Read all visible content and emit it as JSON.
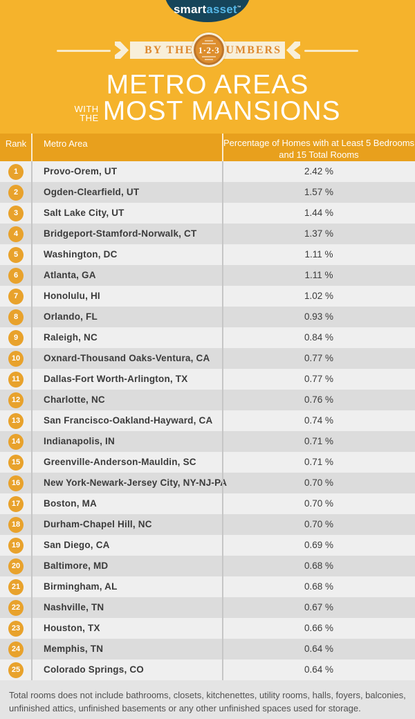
{
  "colors": {
    "background": "#F5B32C",
    "header_orange": "#E8A01D",
    "badge_orange": "#E8A22C",
    "ribbon_cream": "#F8EFD9",
    "ribbon_text_orange": "#DE8A31",
    "badge_circle_fill": "#DD8E2E",
    "badge_circle_ring": "#BD752B",
    "logo_navy": "#16455A",
    "logo_blue": "#56B7E6",
    "row_light": "#EFEFEF",
    "row_dark": "#DCDCDC",
    "footer_bg": "#E4E4E4",
    "text_dark": "#3B3B3B"
  },
  "logo": {
    "smart": "smart",
    "asset": "asset",
    "tm": "™"
  },
  "banner": {
    "left_label": "BY THE",
    "badge_label": "1·2·3",
    "right_label": "NUMBERS"
  },
  "title": {
    "line1": "METRO AREAS",
    "prefix_top": "WITH",
    "prefix_bottom": "THE",
    "line2": "MOST MANSIONS"
  },
  "table": {
    "header": {
      "rank": "Rank",
      "metro": "Metro Area",
      "value_line1": "Percentage of Homes with at Least",
      "value_line2": "5 Bedrooms and 15 Total Rooms"
    },
    "rows": [
      {
        "rank": "1",
        "metro": "Provo-Orem, UT",
        "value": "2.42 %"
      },
      {
        "rank": "2",
        "metro": "Ogden-Clearfield, UT",
        "value": "1.57 %"
      },
      {
        "rank": "3",
        "metro": "Salt Lake City, UT",
        "value": "1.44 %"
      },
      {
        "rank": "4",
        "metro": "Bridgeport-Stamford-Norwalk, CT",
        "value": "1.37 %"
      },
      {
        "rank": "5",
        "metro": "Washington, DC",
        "value": "1.11 %"
      },
      {
        "rank": "6",
        "metro": "Atlanta, GA",
        "value": "1.11 %"
      },
      {
        "rank": "7",
        "metro": "Honolulu, HI",
        "value": "1.02 %"
      },
      {
        "rank": "8",
        "metro": "Orlando, FL",
        "value": "0.93 %"
      },
      {
        "rank": "9",
        "metro": "Raleigh, NC",
        "value": "0.84 %"
      },
      {
        "rank": "10",
        "metro": "Oxnard-Thousand Oaks-Ventura, CA",
        "value": "0.77 %"
      },
      {
        "rank": "11",
        "metro": "Dallas-Fort Worth-Arlington, TX",
        "value": "0.77 %"
      },
      {
        "rank": "12",
        "metro": "Charlotte, NC",
        "value": "0.76 %"
      },
      {
        "rank": "13",
        "metro": "San Francisco-Oakland-Hayward, CA",
        "value": "0.74 %"
      },
      {
        "rank": "14",
        "metro": "Indianapolis, IN",
        "value": "0.71 %"
      },
      {
        "rank": "15",
        "metro": "Greenville-Anderson-Mauldin, SC",
        "value": "0.71 %"
      },
      {
        "rank": "16",
        "metro": "New York-Newark-Jersey City, NY-NJ-PA",
        "value": "0.70 %"
      },
      {
        "rank": "17",
        "metro": "Boston, MA",
        "value": "0.70 %"
      },
      {
        "rank": "18",
        "metro": "Durham-Chapel Hill, NC",
        "value": "0.70 %"
      },
      {
        "rank": "19",
        "metro": "San Diego, CA",
        "value": "0.69 %"
      },
      {
        "rank": "20",
        "metro": "Baltimore, MD",
        "value": "0.68 %"
      },
      {
        "rank": "21",
        "metro": "Birmingham, AL",
        "value": "0.68 %"
      },
      {
        "rank": "22",
        "metro": "Nashville, TN",
        "value": "0.67 %"
      },
      {
        "rank": "23",
        "metro": "Houston, TX",
        "value": "0.66 %"
      },
      {
        "rank": "24",
        "metro": "Memphis, TN",
        "value": "0.64 %"
      },
      {
        "rank": "25",
        "metro": "Colorado Springs, CO",
        "value": "0.64 %"
      }
    ]
  },
  "footnote": {
    "line1": "Total rooms does not include bathrooms, closets, kitchenettes, utility rooms, halls, foyers, balconies,",
    "line2": "unfinished attics, unfinished basements or any other unfinished spaces used for storage."
  },
  "chart_data": {
    "type": "table",
    "title": "Metro Areas with the Most Mansions",
    "columns": [
      "Rank",
      "Metro Area",
      "Percentage of Homes with at Least 5 Bedrooms and 15 Total Rooms"
    ],
    "categories": [
      "Provo-Orem, UT",
      "Ogden-Clearfield, UT",
      "Salt Lake City, UT",
      "Bridgeport-Stamford-Norwalk, CT",
      "Washington, DC",
      "Atlanta, GA",
      "Honolulu, HI",
      "Orlando, FL",
      "Raleigh, NC",
      "Oxnard-Thousand Oaks-Ventura, CA",
      "Dallas-Fort Worth-Arlington, TX",
      "Charlotte, NC",
      "San Francisco-Oakland-Hayward, CA",
      "Indianapolis, IN",
      "Greenville-Anderson-Mauldin, SC",
      "New York-Newark-Jersey City, NY-NJ-PA",
      "Boston, MA",
      "Durham-Chapel Hill, NC",
      "San Diego, CA",
      "Baltimore, MD",
      "Birmingham, AL",
      "Nashville, TN",
      "Houston, TX",
      "Memphis, TN",
      "Colorado Springs, CO"
    ],
    "values": [
      2.42,
      1.57,
      1.44,
      1.37,
      1.11,
      1.11,
      1.02,
      0.93,
      0.84,
      0.77,
      0.77,
      0.76,
      0.74,
      0.71,
      0.71,
      0.7,
      0.7,
      0.7,
      0.69,
      0.68,
      0.68,
      0.67,
      0.66,
      0.64,
      0.64
    ],
    "value_unit": "%"
  }
}
